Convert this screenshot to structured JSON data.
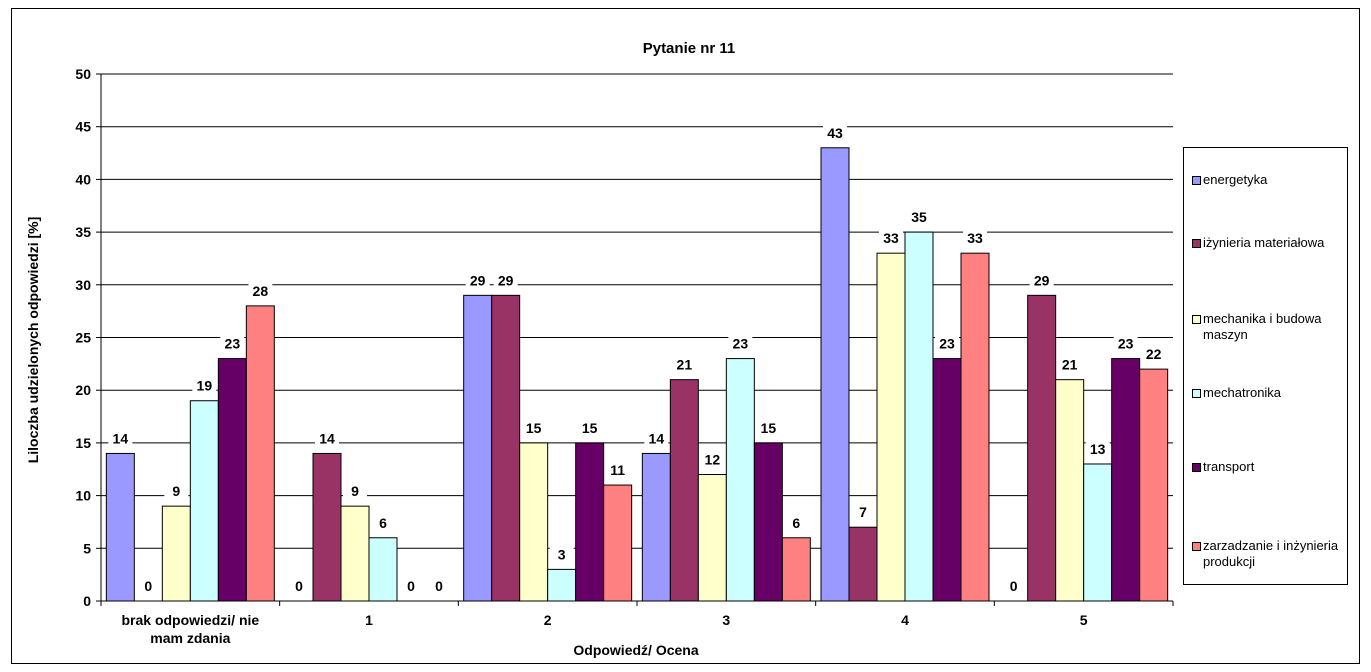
{
  "chart_data": {
    "type": "bar",
    "title": "Pytanie nr 11",
    "xlabel": "Odpowiedź/ Ocena",
    "ylabel": "Liloczba udzielonych odpowiedzi [%]",
    "ylim": [
      0,
      50
    ],
    "yticks": [
      0,
      5,
      10,
      15,
      20,
      25,
      30,
      35,
      40,
      45,
      50
    ],
    "grid": true,
    "legend_position": "right",
    "categories": [
      "brak odpowiedzi/ nie mam zdania",
      "1",
      "2",
      "3",
      "4",
      "5"
    ],
    "series": [
      {
        "name": "energetyka",
        "color": "#9999FF",
        "values": [
          14,
          0,
          29,
          14,
          43,
          0
        ]
      },
      {
        "name": "iżynieria materiałowa",
        "color": "#993366",
        "values": [
          0,
          14,
          29,
          21,
          7,
          29
        ]
      },
      {
        "name": "mechanika i budowa maszyn",
        "color": "#FFFFCC",
        "values": [
          9,
          9,
          15,
          12,
          33,
          21
        ]
      },
      {
        "name": "mechatronika",
        "color": "#CCFFFF",
        "values": [
          19,
          6,
          3,
          23,
          35,
          13
        ]
      },
      {
        "name": "transport",
        "color": "#660066",
        "values": [
          23,
          0,
          15,
          15,
          23,
          23
        ]
      },
      {
        "name": "zarzadzanie i inżynieria produkcji",
        "color": "#FF8080",
        "values": [
          28,
          0,
          11,
          6,
          33,
          22
        ]
      }
    ]
  }
}
